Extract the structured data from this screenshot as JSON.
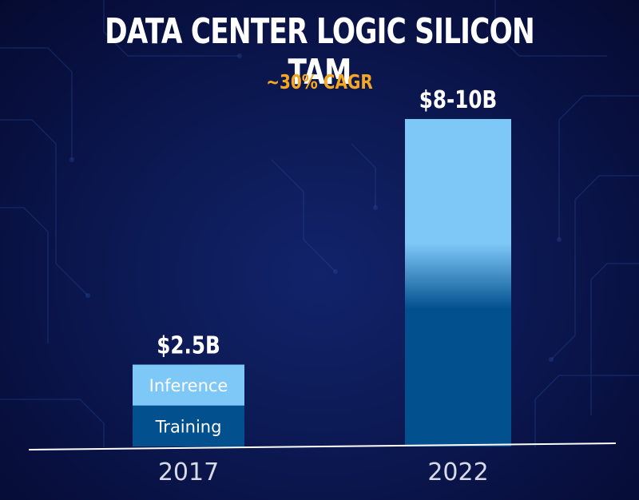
{
  "chart_data": {
    "type": "bar",
    "title": "DATA CENTER LOGIC SILICON TAM",
    "subtitle": "~30% CAGR",
    "categories": [
      "2017",
      "2022"
    ],
    "series": [
      {
        "name": "Training",
        "values": [
          1.25,
          5.3
        ]
      },
      {
        "name": "Inference",
        "values": [
          1.25,
          4.7
        ]
      }
    ],
    "data_labels": [
      "$2.5B",
      "$8-10B"
    ],
    "segment_labels": [
      "Inference",
      "Training"
    ],
    "ylim": [
      0,
      10
    ],
    "grid": false,
    "legend": "none"
  },
  "colors": {
    "inference": "#7ec8f8",
    "training": "#03508e",
    "title": "#ffffff",
    "subtitle": "#f5a623",
    "axis": "#ffffff",
    "tick_label": "#d8dbe6"
  }
}
